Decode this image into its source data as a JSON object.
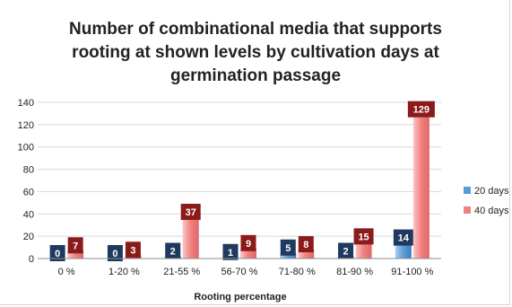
{
  "chart_data": {
    "type": "bar",
    "title_lines": [
      "Number of combinational media that supports",
      "rooting at shown levels by cultivation days at",
      "germination passage"
    ],
    "xlabel": "Rooting percentage",
    "ylabel": "",
    "categories": [
      "0 %",
      "1-20 %",
      "21-55 %",
      "56-70 %",
      "71-80 %",
      "81-90 %",
      "91-100 %"
    ],
    "series": [
      {
        "name": "20 days",
        "values": [
          0,
          0,
          2,
          1,
          5,
          2,
          14
        ],
        "labels": [
          "0",
          "0",
          "2",
          "1",
          "5",
          "2",
          "14"
        ],
        "color": "#5b9bd5",
        "label_bg": "#1f3a5f"
      },
      {
        "name": "40 days",
        "values": [
          7,
          3,
          37,
          9,
          8,
          15,
          129
        ],
        "labels": [
          "7",
          "3",
          "37",
          "9",
          "8",
          "15",
          "129"
        ],
        "color": "#f08080",
        "label_bg": "#8b1a1a"
      }
    ],
    "ylim": [
      0,
      140
    ],
    "yticks": [
      0,
      20,
      40,
      60,
      80,
      100,
      120,
      140
    ],
    "grid": true,
    "legend_position": "right"
  }
}
